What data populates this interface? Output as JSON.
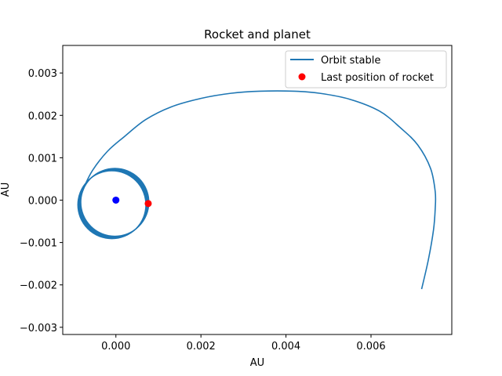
{
  "chart_data": {
    "type": "line",
    "title": "Rocket and planet",
    "xlabel": "AU",
    "ylabel": "AU",
    "xlim": [
      -0.00125,
      0.0079
    ],
    "ylim": [
      -0.00317,
      0.00365
    ],
    "xticks": [
      0.0,
      0.002,
      0.004,
      0.006
    ],
    "xtick_labels": [
      "0.000",
      "0.002",
      "0.004",
      "0.006"
    ],
    "yticks": [
      -0.003,
      -0.002,
      -0.001,
      0.0,
      0.001,
      0.002,
      0.003
    ],
    "ytick_labels": [
      "−0.003",
      "−0.002",
      "−0.001",
      "0.000",
      "0.001",
      "0.002",
      "0.003"
    ],
    "grid": false,
    "legend_position": "top-right",
    "series": [
      {
        "name": "Orbit stable",
        "kind": "line",
        "color": "#1f77b4",
        "x": [
          0.00719,
          0.00735,
          0.00747,
          0.00751,
          0.00751,
          0.0074,
          0.0071,
          0.0067,
          0.0062,
          0.0055,
          0.0048,
          0.0042,
          0.00338,
          0.0027,
          0.002,
          0.0013,
          0.0007,
          0.0002,
          -0.0002,
          -0.00055,
          -0.00075,
          -0.00085,
          -0.00085
        ],
        "y": [
          -0.0021,
          -0.0014,
          -0.0007,
          -0.0002,
          0.0002,
          0.00075,
          0.0013,
          0.0017,
          0.0021,
          0.00238,
          0.00252,
          0.00257,
          0.00257,
          0.00252,
          0.0024,
          0.0022,
          0.0019,
          0.0015,
          0.00115,
          0.0007,
          0.0003,
          0.0,
          -0.0001
        ]
      },
      {
        "name": "",
        "kind": "orbit-loop",
        "color": "#1f77b4",
        "center": [
          -6e-05,
          -8e-05
        ],
        "radius": 0.0008,
        "loops": 7
      },
      {
        "name": "",
        "kind": "point",
        "color": "#0000ff",
        "x": [
          0.0
        ],
        "y": [
          0.0
        ]
      },
      {
        "name": "Last position of rocket",
        "kind": "point",
        "color": "#ff0000",
        "x": [
          0.00076
        ],
        "y": [
          -8e-05
        ]
      }
    ]
  }
}
